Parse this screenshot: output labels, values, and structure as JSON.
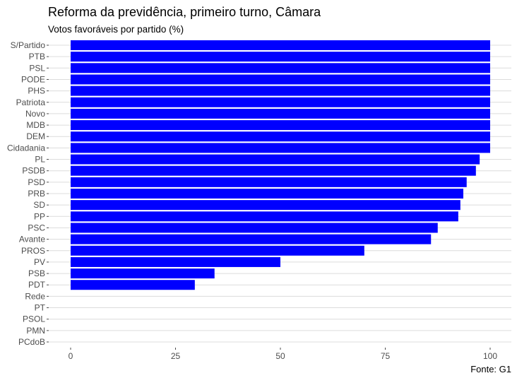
{
  "chart_data": {
    "type": "bar",
    "orientation": "horizontal",
    "title": "Reforma da previdência, primeiro turno, Câmara",
    "subtitle": "Votos favoráveis por partido (%)",
    "caption": "Fonte: G1",
    "xlabel": "",
    "ylabel": "",
    "categories": [
      "S/Partido",
      "PTB",
      "PSL",
      "PODE",
      "PHS",
      "Patriota",
      "Novo",
      "MDB",
      "DEM",
      "Cidadania",
      "PL",
      "PSDB",
      "PSD",
      "PRB",
      "SD",
      "PP",
      "PSC",
      "Avante",
      "PROS",
      "PV",
      "PSB",
      "PDT",
      "Rede",
      "PT",
      "PSOL",
      "PMN",
      "PCdoB"
    ],
    "values": [
      100,
      100,
      100,
      100,
      100,
      100,
      100,
      100,
      100,
      100,
      97.5,
      96.6,
      94.4,
      93.6,
      92.9,
      92.4,
      87.5,
      85.9,
      70,
      50,
      34.3,
      29.6,
      0,
      0,
      0,
      0,
      0
    ],
    "xlim": [
      0,
      100
    ],
    "xticks": [
      0,
      25,
      50,
      75,
      100
    ],
    "bar_color": "#0000FF",
    "grid": "horizontal major"
  }
}
